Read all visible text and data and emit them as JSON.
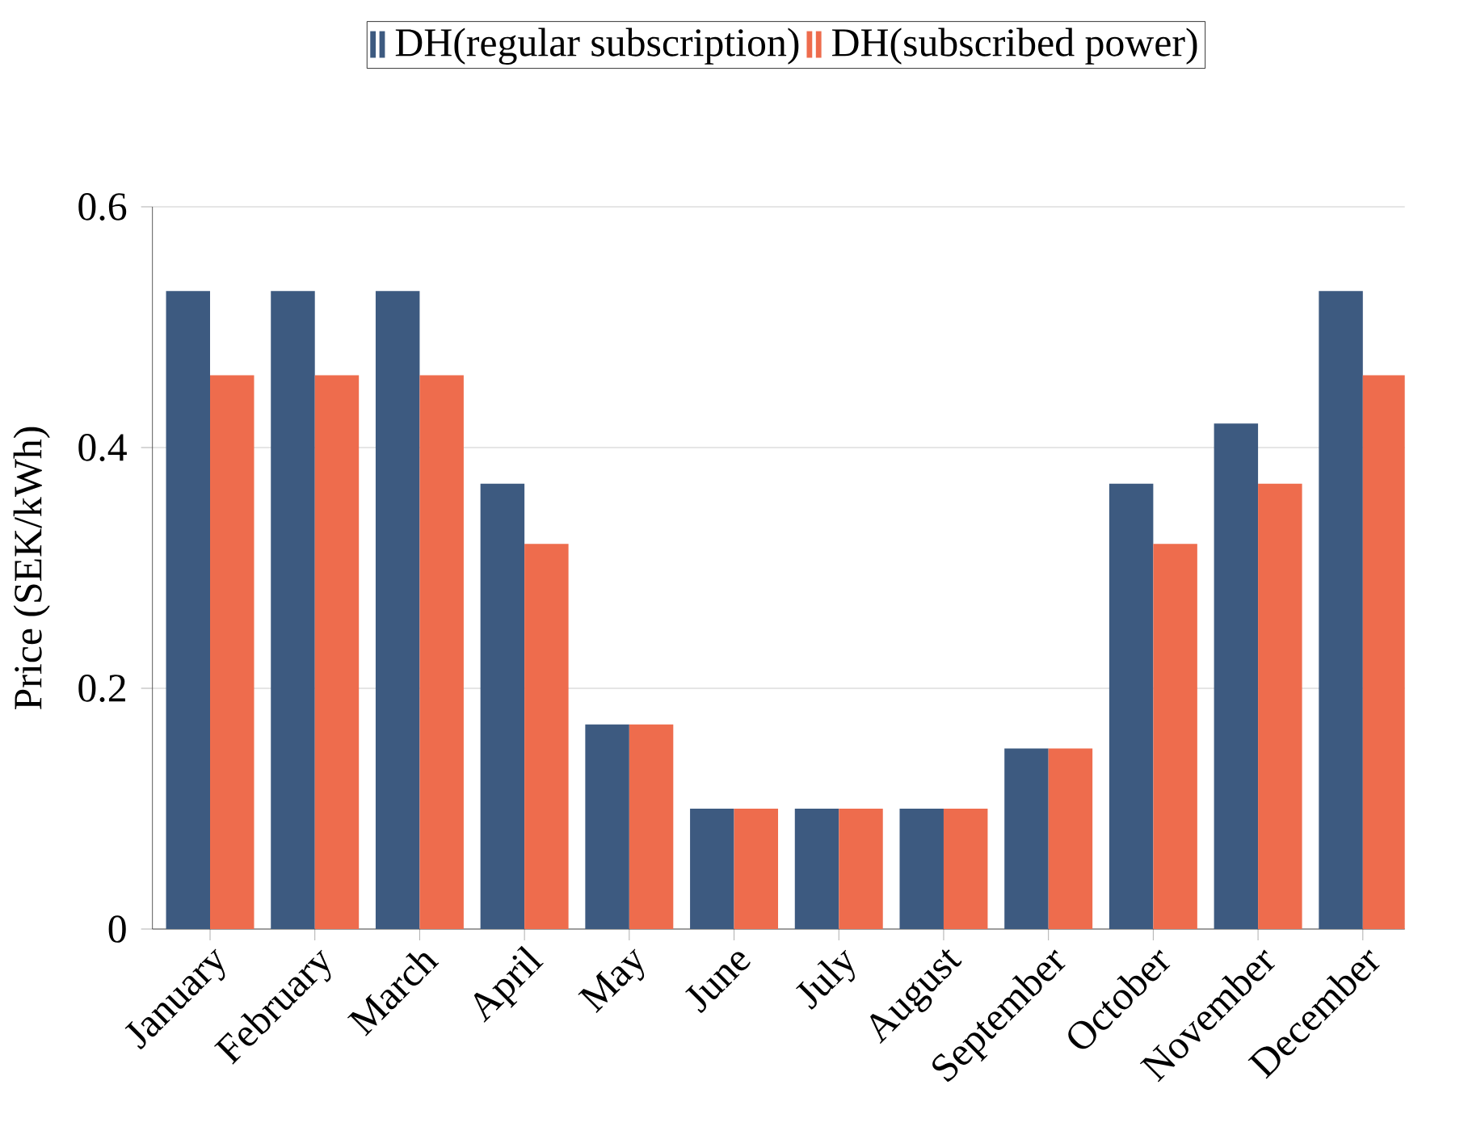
{
  "chart_data": {
    "type": "bar",
    "ylabel": "Price (SEK/kWh)",
    "categories": [
      "January",
      "February",
      "March",
      "April",
      "May",
      "June",
      "July",
      "August",
      "September",
      "October",
      "November",
      "December"
    ],
    "series": [
      {
        "name": "DH(regular subscription)",
        "color": "#3d5a80",
        "values": [
          0.53,
          0.53,
          0.53,
          0.37,
          0.17,
          0.1,
          0.1,
          0.1,
          0.15,
          0.37,
          0.42,
          0.53
        ]
      },
      {
        "name": "DH(subscribed power)",
        "color": "#ee6c4d",
        "values": [
          0.46,
          0.46,
          0.46,
          0.32,
          0.17,
          0.1,
          0.1,
          0.1,
          0.15,
          0.32,
          0.37,
          0.46
        ]
      }
    ],
    "ylim": [
      0,
      0.6
    ],
    "yticks": [
      0,
      0.2,
      0.4,
      0.6
    ],
    "grid": "y",
    "legend": "top"
  }
}
